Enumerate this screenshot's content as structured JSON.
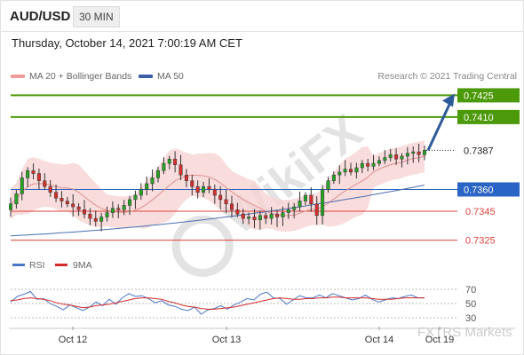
{
  "header": {
    "pair": "AUD/USD",
    "timeframe": "30 MIN",
    "datetime": "Thursday, October 14, 2021 7:00:19 AM CET"
  },
  "legend": {
    "ma20_bb": "MA 20 + Bollinger Bands",
    "ma50": "MA 50",
    "credit": "Research © 2021 Trading Central",
    "rsi": "RSI",
    "ma9": "9MA"
  },
  "watermark": {
    "brand": "WikiFX",
    "footer": "FXTRS Markets"
  },
  "colors": {
    "resistance": "#4c9a0a",
    "pivot": "#2a64c4",
    "support": "#e0423c",
    "bollinger": "#f7d2d2",
    "ma20": "#e08f8f",
    "ma50": "#4a6fb0",
    "rsi": "#4a78c8",
    "ma9": "#d42a2a",
    "arrow": "#2d5a9a"
  },
  "chart_data": [
    {
      "type": "candlestick",
      "x_labels": [
        "Oct 12",
        "Oct 13",
        "Oct 14",
        "Oct 19"
      ],
      "y_range": [
        0.7318,
        0.7432
      ],
      "current_price": 0.7387,
      "levels": [
        {
          "label": "0.7425",
          "value": 0.7425,
          "kind": "resistance"
        },
        {
          "label": "0.7410",
          "value": 0.741,
          "kind": "resistance"
        },
        {
          "label": "0.7360",
          "value": 0.736,
          "kind": "pivot"
        },
        {
          "label": "0.7345",
          "value": 0.7345,
          "kind": "support"
        },
        {
          "label": "0.7325",
          "value": 0.7325,
          "kind": "support"
        }
      ],
      "current_label": "0.7387",
      "forecast_arrow": {
        "from": 0.7387,
        "to": 0.7425
      },
      "closes": [
        0.735,
        0.7357,
        0.7368,
        0.7373,
        0.7371,
        0.7366,
        0.7362,
        0.7358,
        0.7354,
        0.7352,
        0.735,
        0.7348,
        0.7346,
        0.7343,
        0.734,
        0.7338,
        0.7341,
        0.7344,
        0.7347,
        0.7346,
        0.7349,
        0.7353,
        0.7356,
        0.736,
        0.7364,
        0.7368,
        0.7373,
        0.7378,
        0.7381,
        0.7377,
        0.737,
        0.7366,
        0.7362,
        0.7358,
        0.7362,
        0.736,
        0.7356,
        0.7353,
        0.735,
        0.7346,
        0.7343,
        0.734,
        0.7341,
        0.7339,
        0.7342,
        0.734,
        0.7343,
        0.7341,
        0.7344,
        0.7346,
        0.7348,
        0.7352,
        0.7356,
        0.735,
        0.7342,
        0.736,
        0.7366,
        0.737,
        0.7372,
        0.7374,
        0.7372,
        0.7375,
        0.7378,
        0.7376,
        0.7378,
        0.738,
        0.7382,
        0.7384,
        0.7381,
        0.7383,
        0.7385,
        0.7386,
        0.7384,
        0.7387
      ],
      "ma50_start": 0.7328,
      "ma50_end": 0.7363
    },
    {
      "type": "line",
      "title": "RSI",
      "series": [
        {
          "name": "RSI",
          "values": [
            52,
            60,
            63,
            67,
            56,
            57,
            50,
            46,
            41,
            48,
            44,
            40,
            45,
            52,
            47,
            56,
            49,
            58,
            64,
            60,
            61,
            57,
            51,
            54,
            48,
            46,
            42,
            40,
            45,
            35,
            41,
            43,
            47,
            42,
            48,
            52,
            57,
            55,
            63,
            66,
            58,
            57,
            49,
            55,
            61,
            58,
            58,
            62,
            58,
            64,
            61,
            58,
            55,
            57,
            62,
            56,
            52,
            55,
            58,
            57,
            60,
            62,
            58,
            58
          ]
        },
        {
          "name": "9MA",
          "values": [
            54,
            55,
            57,
            58,
            57,
            56,
            54,
            51,
            49,
            48,
            46,
            44,
            45,
            47,
            48,
            49,
            51,
            53,
            55,
            57,
            58,
            58,
            57,
            56,
            53,
            51,
            48,
            46,
            45,
            43,
            42,
            42,
            43,
            44,
            45,
            47,
            49,
            51,
            53,
            55,
            57,
            58,
            57,
            56,
            56,
            57,
            57,
            58,
            58,
            59,
            59,
            58,
            58,
            58,
            58,
            57,
            56,
            56,
            56,
            57,
            58,
            58,
            58,
            58
          ]
        }
      ],
      "yticks": [
        70,
        50,
        30
      ],
      "y_range": [
        25,
        80
      ]
    }
  ]
}
